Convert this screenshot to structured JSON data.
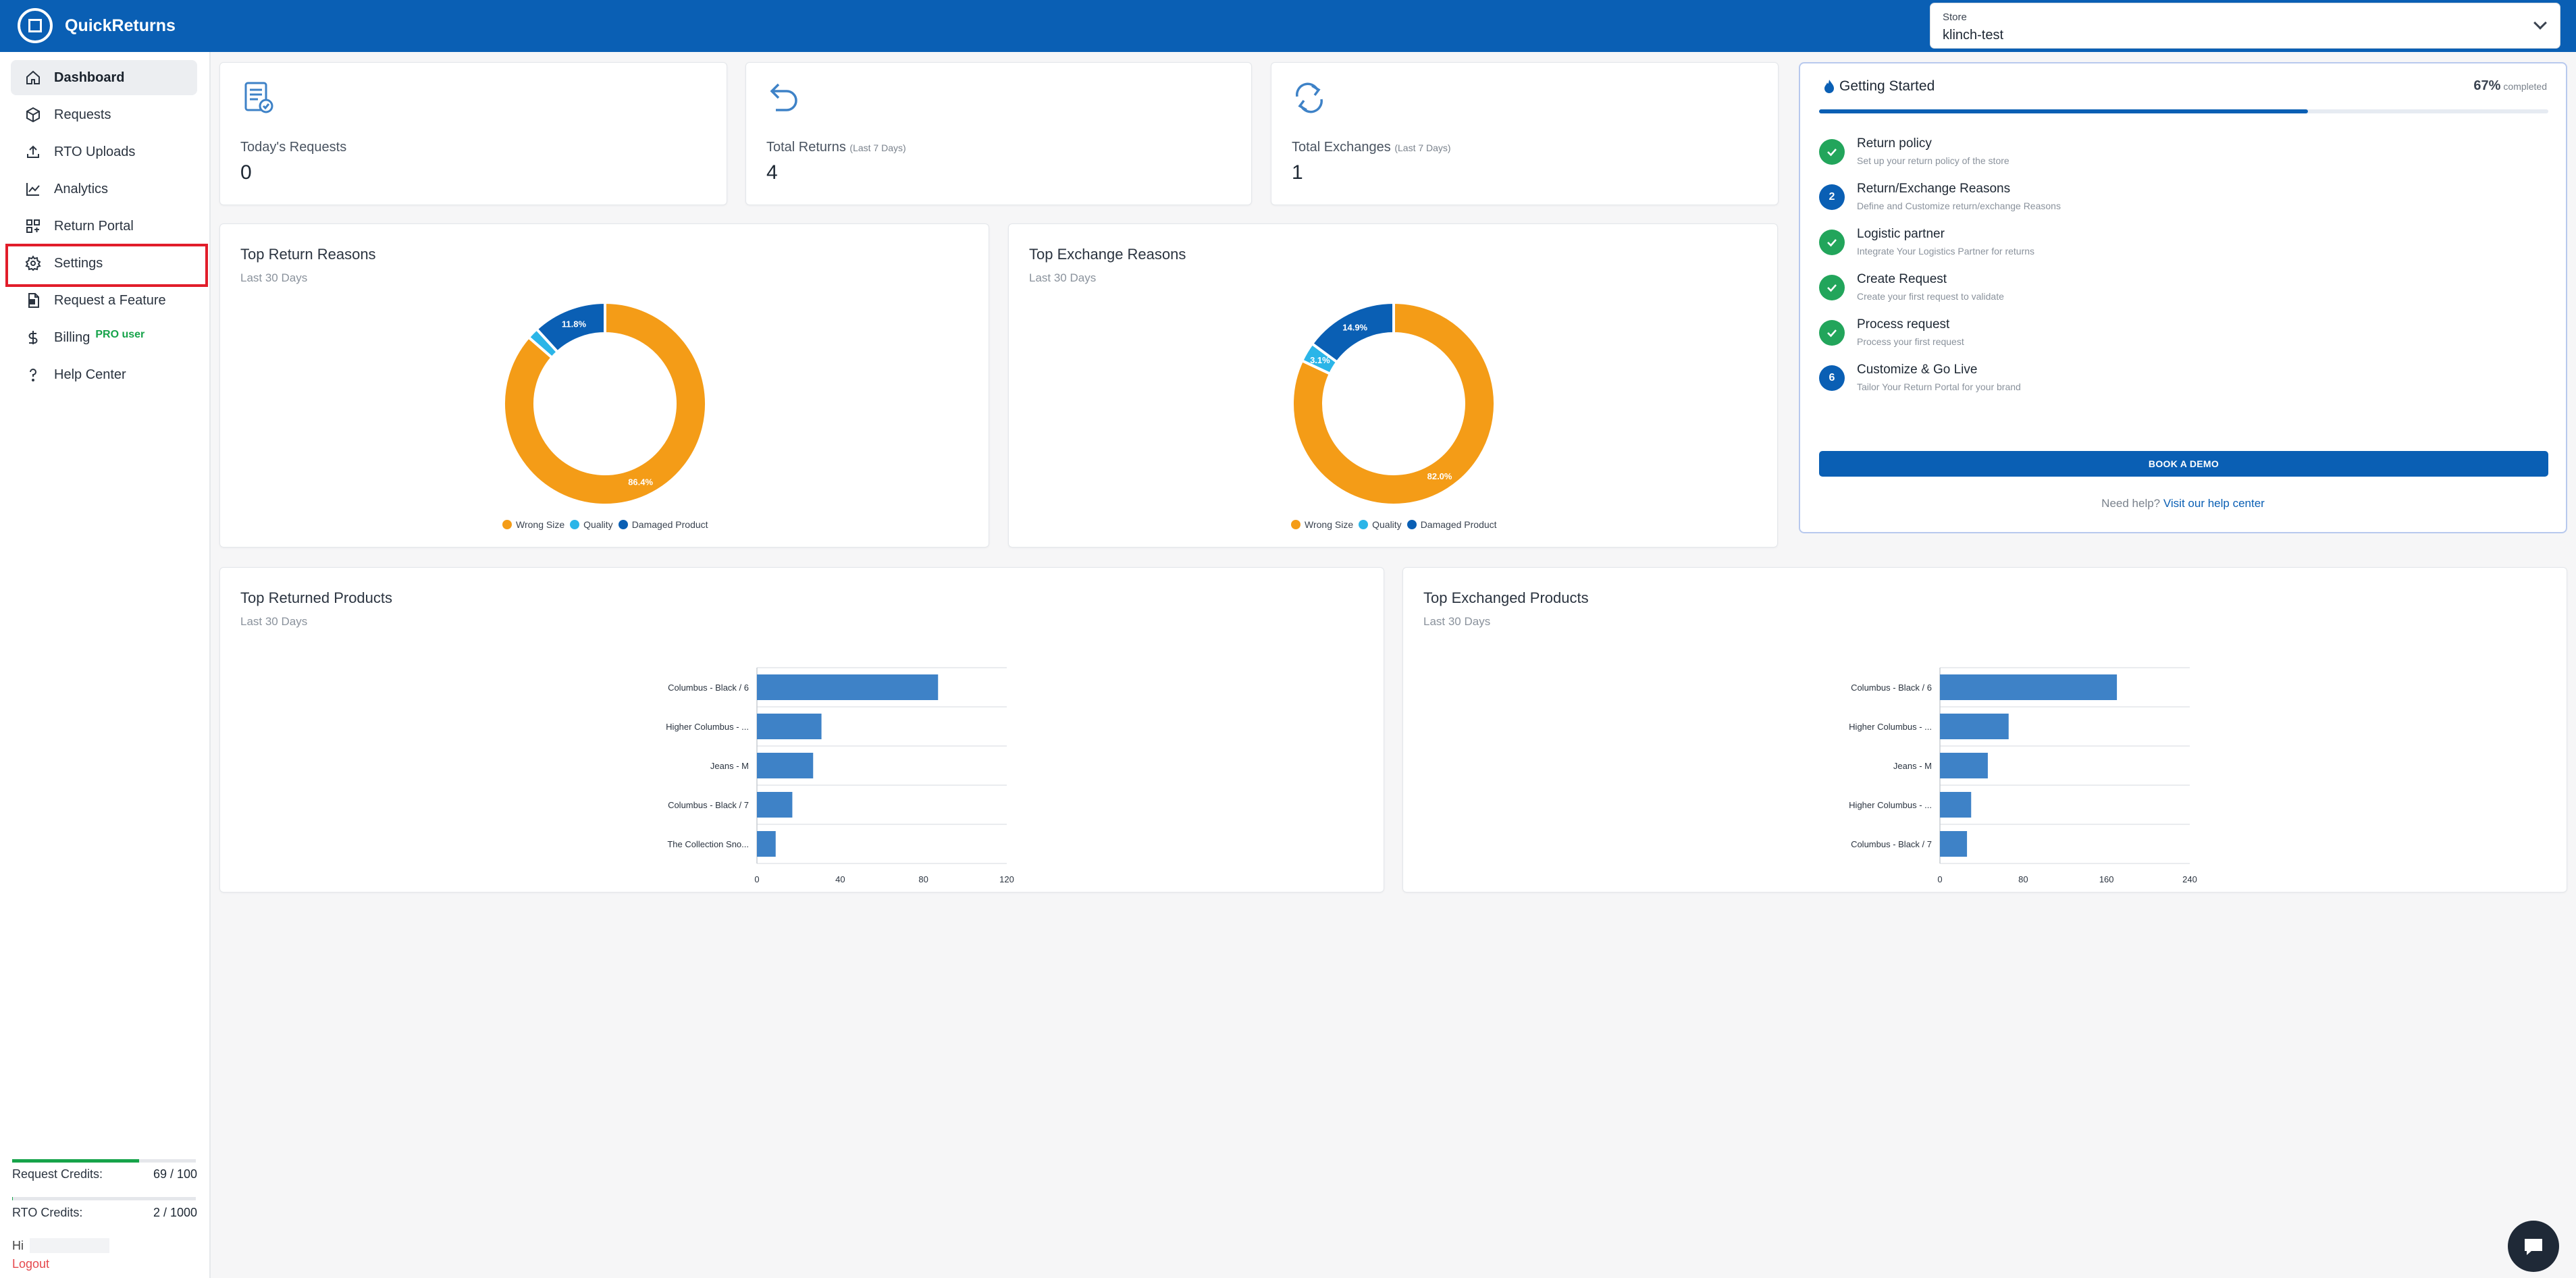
{
  "app": {
    "name": "QuickReturns"
  },
  "store": {
    "label": "Store",
    "value": "klinch-test"
  },
  "sidebar": {
    "items": [
      {
        "label": "Dashboard",
        "icon": "home-icon"
      },
      {
        "label": "Requests",
        "icon": "box-icon"
      },
      {
        "label": "RTO Uploads",
        "icon": "upload-icon"
      },
      {
        "label": "Analytics",
        "icon": "chart-line-icon"
      },
      {
        "label": "Return Portal",
        "icon": "grid-icon"
      },
      {
        "label": "Settings",
        "icon": "gear-icon"
      },
      {
        "label": "Request a Feature",
        "icon": "document-plus-icon"
      },
      {
        "label": "Billing",
        "icon": "dollar-icon",
        "badge": "PRO user"
      },
      {
        "label": "Help Center",
        "icon": "question-icon"
      }
    ],
    "credits": [
      {
        "label": "Request Credits:",
        "value": "69 / 100",
        "fraction": 0.69
      },
      {
        "label": "RTO Credits:",
        "value": "2 / 1000",
        "fraction": 0.002
      }
    ],
    "greeting": "Hi",
    "logout": "Logout"
  },
  "stats": [
    {
      "title": "Today's Requests",
      "note": "",
      "value": "0",
      "icon": "request-doc-icon"
    },
    {
      "title": "Total Returns",
      "note": "(Last 7 Days)",
      "value": "4",
      "icon": "return-arrow-icon"
    },
    {
      "title": "Total Exchanges",
      "note": "(Last 7 Days)",
      "value": "1",
      "icon": "exchange-arrows-icon"
    }
  ],
  "reasons": [
    {
      "title": "Top Return Reasons",
      "subtitle": "Last 30 Days",
      "labels": {
        "major": "86.4%",
        "minor": "11.8%"
      }
    },
    {
      "title": "Top Exchange Reasons",
      "subtitle": "Last 30 Days",
      "labels": {
        "major": "82.0%",
        "minor": "14.9%",
        "small": "3.1%"
      }
    }
  ],
  "legend": [
    "Wrong Size",
    "Quality",
    "Damaged Product"
  ],
  "products": [
    {
      "title": "Top Returned Products",
      "subtitle": "Last 30 Days"
    },
    {
      "title": "Top Exchanged Products",
      "subtitle": "Last 30 Days"
    }
  ],
  "getting_started": {
    "title": "Getting Started",
    "percent": "67%",
    "percent_label": "completed",
    "progress": 0.67,
    "steps": [
      {
        "badge": "done",
        "number": "",
        "title": "Return policy",
        "desc": "Set up your return policy of the store"
      },
      {
        "badge": "num",
        "number": "2",
        "title": "Return/Exchange Reasons",
        "desc": "Define and Customize return/exchange Reasons"
      },
      {
        "badge": "done",
        "number": "",
        "title": "Logistic partner",
        "desc": "Integrate Your Logistics Partner for returns"
      },
      {
        "badge": "done",
        "number": "",
        "title": "Create Request",
        "desc": "Create your first request to validate"
      },
      {
        "badge": "done",
        "number": "",
        "title": "Process request",
        "desc": "Process your first request"
      },
      {
        "badge": "num",
        "number": "6",
        "title": "Customize & Go Live",
        "desc": "Tailor Your Return Portal for your brand"
      }
    ],
    "button": "BOOK A DEMO",
    "help_prefix": "Need help?",
    "help_link": "Visit our help center"
  },
  "colors": {
    "brand": "#0a5fb4",
    "wrong_size": "#f49c17",
    "quality": "#2bb5e8",
    "damaged": "#0a5fb4",
    "bar": "#3e82c7",
    "done": "#22a55b"
  },
  "chart_data": [
    {
      "type": "pie",
      "title": "Top Return Reasons",
      "subtitle": "Last 30 Days",
      "categories": [
        "Wrong Size",
        "Quality",
        "Damaged Product"
      ],
      "values": [
        86.4,
        1.8,
        11.8
      ],
      "data_labels": [
        "86.4%",
        "",
        "11.8%"
      ],
      "legend": "bottom"
    },
    {
      "type": "pie",
      "title": "Top Exchange Reasons",
      "subtitle": "Last 30 Days",
      "categories": [
        "Wrong Size",
        "Quality",
        "Damaged Product"
      ],
      "values": [
        82.0,
        3.1,
        14.9
      ],
      "data_labels": [
        "82.0%",
        "3.1%",
        "14.9%"
      ],
      "legend": "bottom"
    },
    {
      "type": "bar",
      "orientation": "horizontal",
      "title": "Top Returned Products",
      "subtitle": "Last 30 Days",
      "categories": [
        "Columbus - Black / 6",
        "Higher Columbus - ...",
        "Jeans - M",
        "Columbus - Black / 7",
        "The Collection Sno..."
      ],
      "values": [
        87,
        31,
        27,
        17,
        9
      ],
      "xlim": [
        0,
        120
      ],
      "xticks": [
        0,
        40,
        80,
        120
      ]
    },
    {
      "type": "bar",
      "orientation": "horizontal",
      "title": "Top Exchanged Products",
      "subtitle": "Last 30 Days",
      "categories": [
        "Columbus - Black / 6",
        "Higher Columbus - ...",
        "Jeans - M",
        "Higher Columbus - ...",
        "Columbus - Black / 7"
      ],
      "values": [
        170,
        66,
        46,
        30,
        26
      ],
      "xlim": [
        0,
        240
      ],
      "xticks": [
        0,
        80,
        160,
        240
      ]
    }
  ]
}
